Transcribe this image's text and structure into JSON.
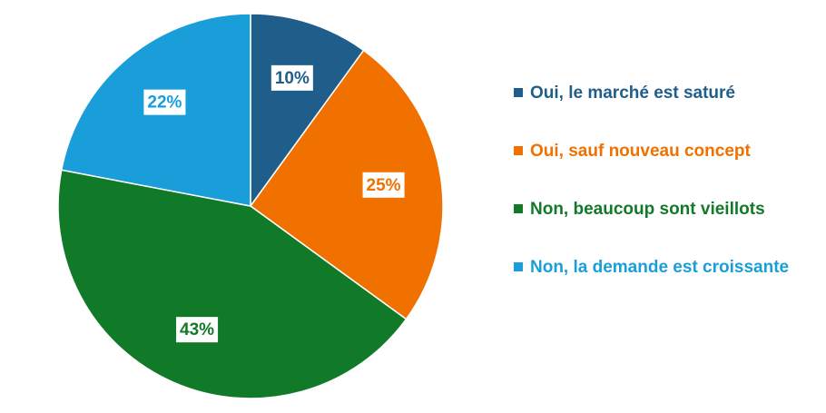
{
  "chart_data": {
    "type": "pie",
    "categories": [
      "Oui, le marché est saturé",
      "Oui, sauf nouveau concept",
      "Non, beaucoup sont vieillots",
      "Non, la demande est croissante"
    ],
    "values": [
      10,
      25,
      43,
      22
    ],
    "labels": [
      "10%",
      "25%",
      "43%",
      "22%"
    ],
    "colors": [
      "#1F5E8A",
      "#F07000",
      "#117A29",
      "#1A9ED9"
    ],
    "start_angle_deg": 0,
    "direction": "clockwise",
    "legend_position": "right",
    "title": ""
  }
}
